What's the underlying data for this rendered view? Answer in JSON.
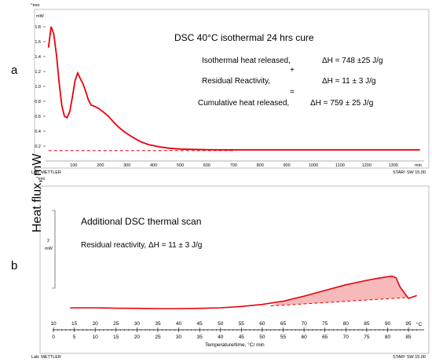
{
  "shared": {
    "ylabel": "Heat flux, mW",
    "lab_label": "Lab: METTLER",
    "software": "STARᵉ SW 15.00",
    "exo_label": "^exo"
  },
  "panel_a": {
    "letter": "a",
    "unit_label": "mW",
    "title": "DSC 40°C isothermal 24 hrs cure",
    "lines": [
      {
        "label": "Isothermal heat released,",
        "value": "ΔH = 748 ±25 J/g"
      },
      {
        "label": "Residual Reactivity,",
        "value": "ΔH = 11 ±  3 J/g"
      },
      {
        "label": "Cumulative heat released,",
        "value": "ΔH = 759 ±  25 J/g"
      }
    ],
    "operators": [
      "+",
      "="
    ],
    "x_unit": "min"
  },
  "panel_b": {
    "letter": "b",
    "title": "Additional DSC thermal scan",
    "residual": "Residual reactivity, ΔH = 11 ±  3 J/g",
    "scale_value": "2",
    "scale_unit": "mW",
    "temp_unit": "°C",
    "time_axis_label": "Temperature/time, °C/ min"
  },
  "chart_data": [
    {
      "type": "line",
      "panel": "a",
      "title": "DSC 40°C isothermal 24 hrs cure",
      "xlabel": "min",
      "ylabel": "mW",
      "xlim": [
        0,
        1410
      ],
      "ylim": [
        0,
        2.0
      ],
      "xticks": [
        100,
        200,
        300,
        400,
        500,
        600,
        700,
        800,
        900,
        1000,
        1100,
        1200,
        1300
      ],
      "yticks": [
        0.2,
        0.4,
        0.6,
        0.8,
        1.0,
        1.2,
        1.4,
        1.6,
        1.8
      ],
      "series": [
        {
          "style": "solid",
          "x": [
            5,
            15,
            25,
            35,
            45,
            55,
            65,
            75,
            85,
            95,
            105,
            115,
            125,
            135,
            145,
            155,
            165,
            180,
            195,
            210,
            230,
            250,
            270,
            290,
            320,
            350,
            380,
            420,
            460,
            500,
            550,
            600,
            650,
            700,
            800,
            900,
            1000,
            1100,
            1200,
            1300,
            1400
          ],
          "y": [
            1.52,
            1.8,
            1.7,
            1.42,
            1.05,
            0.75,
            0.6,
            0.58,
            0.66,
            0.86,
            1.08,
            1.18,
            1.1,
            1.03,
            0.93,
            0.82,
            0.75,
            0.73,
            0.7,
            0.66,
            0.6,
            0.52,
            0.45,
            0.39,
            0.32,
            0.26,
            0.22,
            0.19,
            0.17,
            0.16,
            0.155,
            0.152,
            0.15,
            0.15,
            0.15,
            0.15,
            0.15,
            0.15,
            0.15,
            0.15,
            0.15
          ]
        },
        {
          "style": "dashed",
          "x": [
            5,
            700
          ],
          "y": [
            0.14,
            0.14
          ]
        }
      ]
    },
    {
      "type": "area",
      "panel": "b",
      "title": "Additional DSC thermal scan",
      "xlabel": "Temperature/time, °C/ min",
      "temperature_ticks": [
        10,
        15,
        20,
        25,
        30,
        35,
        40,
        45,
        50,
        55,
        60,
        65,
        70,
        75,
        80,
        85,
        90,
        95
      ],
      "time_ticks": [
        0,
        5,
        10,
        15,
        20,
        25,
        30,
        35,
        40,
        45,
        50,
        55,
        60,
        65,
        70,
        75,
        80,
        85
      ],
      "xlim": [
        10,
        98
      ],
      "ylim_mW": [
        0,
        5
      ],
      "series": [
        {
          "style": "solid",
          "x": [
            14,
            20,
            25,
            30,
            35,
            40,
            45,
            50,
            55,
            60,
            65,
            70,
            75,
            80,
            85,
            88,
            90,
            91,
            92,
            93,
            95,
            97
          ],
          "y": [
            1.2,
            1.2,
            1.18,
            1.17,
            1.16,
            1.16,
            1.17,
            1.2,
            1.27,
            1.38,
            1.55,
            1.82,
            2.12,
            2.42,
            2.66,
            2.78,
            2.85,
            2.88,
            2.8,
            2.3,
            1.7,
            1.85
          ]
        },
        {
          "style": "dashed",
          "x": [
            62,
            95
          ],
          "y": [
            1.3,
            1.75
          ]
        }
      ],
      "shaded_region": {
        "x_from": 62,
        "x_to": 95
      }
    }
  ]
}
